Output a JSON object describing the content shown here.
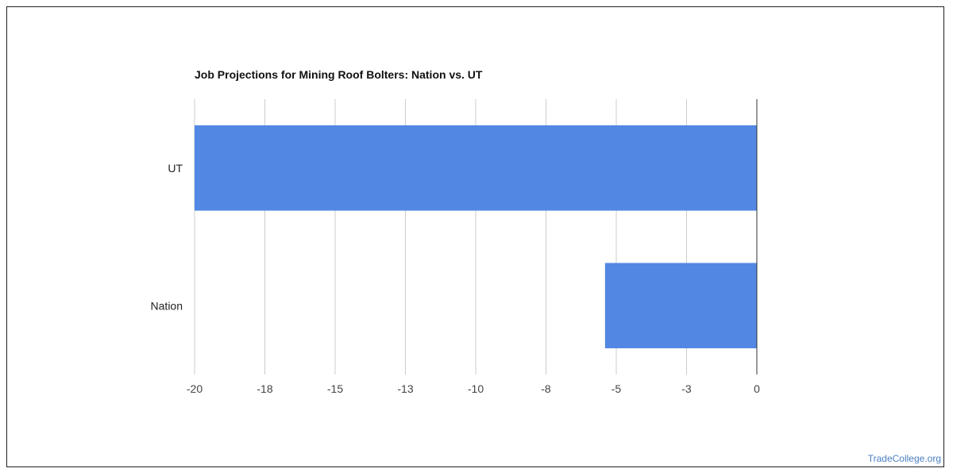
{
  "chart_data": {
    "type": "bar",
    "orientation": "horizontal",
    "title": "Job Projections for Mining Roof Bolters: Nation vs. UT",
    "categories": [
      "UT",
      "Nation"
    ],
    "values": [
      -20,
      -5.4
    ],
    "xlim": [
      -20,
      0
    ],
    "x_ticks": [
      -20,
      -17.5,
      -15,
      -12.5,
      -10,
      -7.5,
      -5,
      -2.5,
      0
    ],
    "x_tick_labels": [
      "-20",
      "-18",
      "-15",
      "-13",
      "-10",
      "-8",
      "-5",
      "-3",
      "0"
    ],
    "xlabel": "",
    "ylabel": "",
    "grid": "vertical",
    "legend": "none",
    "bar_color": "#5387e4"
  },
  "watermark": {
    "text": "TradeCollege.org",
    "color": "#4a7fc1"
  }
}
